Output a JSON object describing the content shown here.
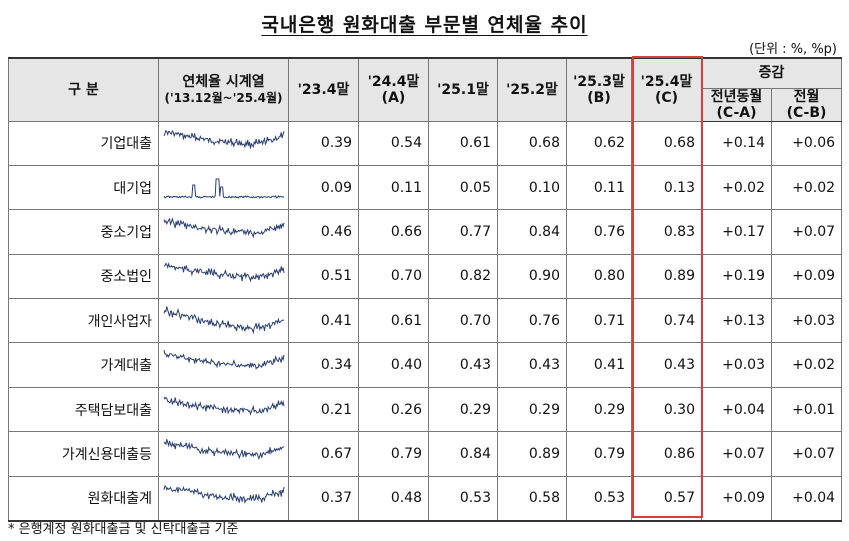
{
  "title": "국내은행 원화대출 부문별 연체율 추이",
  "unit": "(단위 : %, %p)",
  "header": {
    "category": "구  분",
    "series_title": "연체율 시계열",
    "series_range": "('13.12월~'25.4월)",
    "periods": [
      {
        "label": "'23.4말",
        "tag": ""
      },
      {
        "label": "'24.4말",
        "tag": "(A)"
      },
      {
        "label": "'25.1말",
        "tag": ""
      },
      {
        "label": "'25.2말",
        "tag": ""
      },
      {
        "label": "'25.3말",
        "tag": "(B)"
      },
      {
        "label": "'25.4말",
        "tag": "(C)"
      }
    ],
    "change_group": "증감",
    "change_cols": [
      {
        "label": "전년동월",
        "tag": "(C-A)"
      },
      {
        "label": "전월",
        "tag": "(C-B)"
      }
    ]
  },
  "rows": [
    {
      "label": "기업대출",
      "level": 0,
      "values": [
        "0.39",
        "0.54",
        "0.61",
        "0.68",
        "0.62",
        "0.68"
      ],
      "changes": [
        "+0.14",
        "+0.06"
      ]
    },
    {
      "label": "대기업",
      "level": 1,
      "values": [
        "0.09",
        "0.11",
        "0.05",
        "0.10",
        "0.11",
        "0.13"
      ],
      "changes": [
        "+0.02",
        "+0.02"
      ]
    },
    {
      "label": "중소기업",
      "level": 1,
      "values": [
        "0.46",
        "0.66",
        "0.77",
        "0.84",
        "0.76",
        "0.83"
      ],
      "changes": [
        "+0.17",
        "+0.07"
      ]
    },
    {
      "label": "중소법인",
      "level": 2,
      "values": [
        "0.51",
        "0.70",
        "0.82",
        "0.90",
        "0.80",
        "0.89"
      ],
      "changes": [
        "+0.19",
        "+0.09"
      ]
    },
    {
      "label": "개인사업자",
      "level": 2,
      "values": [
        "0.41",
        "0.61",
        "0.70",
        "0.76",
        "0.71",
        "0.74"
      ],
      "changes": [
        "+0.13",
        "+0.03"
      ]
    },
    {
      "label": "가계대출",
      "level": 0,
      "values": [
        "0.34",
        "0.40",
        "0.43",
        "0.43",
        "0.41",
        "0.43"
      ],
      "changes": [
        "+0.03",
        "+0.02"
      ]
    },
    {
      "label": "주택담보대출",
      "level": 1,
      "values": [
        "0.21",
        "0.26",
        "0.29",
        "0.29",
        "0.29",
        "0.30"
      ],
      "changes": [
        "+0.04",
        "+0.01"
      ]
    },
    {
      "label": "가계신용대출등",
      "level": 1,
      "values": [
        "0.67",
        "0.79",
        "0.84",
        "0.89",
        "0.79",
        "0.86"
      ],
      "changes": [
        "+0.07",
        "+0.07"
      ]
    },
    {
      "label": "원화대출계",
      "level": 0,
      "values": [
        "0.37",
        "0.48",
        "0.53",
        "0.58",
        "0.53",
        "0.57"
      ],
      "changes": [
        "+0.09",
        "+0.04"
      ]
    }
  ],
  "sparkline_shapes": [
    "decline-then-rise",
    "flat-with-spikes",
    "decline-then-rise",
    "decline-then-rise",
    "decline-then-rise-strong",
    "decline-then-rise",
    "decline-then-rise",
    "decline-then-rise",
    "decline-then-rise"
  ],
  "colors": {
    "header_bg": "#e6e6e6",
    "highlight": "#e03a3a",
    "sparkline": "#2b3f73"
  },
  "footnote": "*  은행계정 원화대출금 및 신탁대출금 기준"
}
